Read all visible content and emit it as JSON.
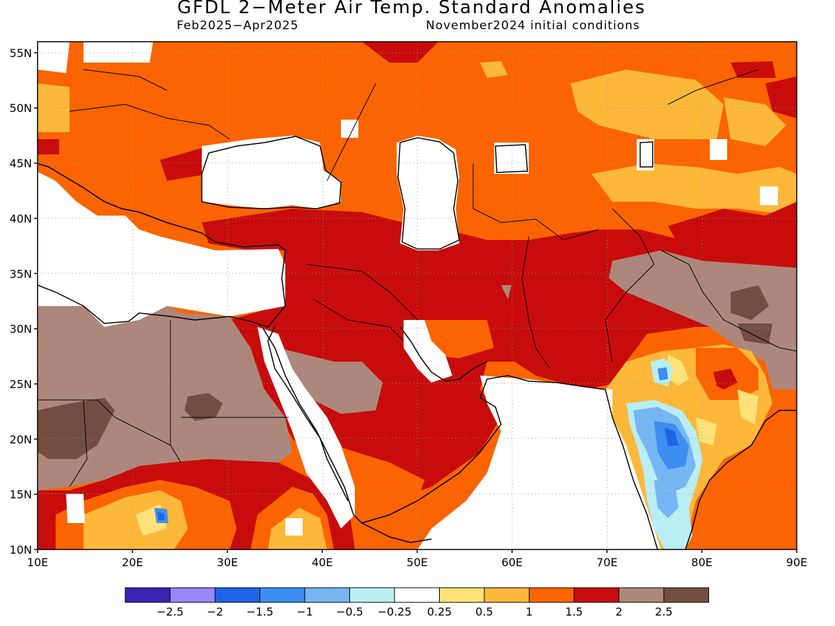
{
  "header": {
    "title": "GFDL 2−Meter Air Temp. Standard Anomalies",
    "period": "Feb2025−Apr2025",
    "initial_conditions": "November2024 initial conditions"
  },
  "map": {
    "lat_range": [
      10,
      56
    ],
    "lon_range": [
      10,
      90
    ],
    "lat_labels": [
      "10N",
      "15N",
      "20N",
      "25N",
      "30N",
      "35N",
      "40N",
      "45N",
      "50N",
      "55N"
    ],
    "lon_labels": [
      "10E",
      "20E",
      "30E",
      "40E",
      "50E",
      "60E",
      "70E",
      "80E",
      "90E"
    ]
  },
  "colorbar": {
    "colors": [
      "#3a24b4",
      "#9a86f6",
      "#1f64e6",
      "#3c8ef0",
      "#76b6f2",
      "#b8eef4",
      "#ffffff",
      "#fde27a",
      "#fdb83a",
      "#fb6400",
      "#c80c0c",
      "#ad877b",
      "#734e40"
    ],
    "labels": [
      "−2.5",
      "−2",
      "−1.5",
      "−1",
      "−0.5",
      "−0.25",
      "0.25",
      "0.5",
      "1",
      "1.5",
      "2",
      "2.5"
    ]
  }
}
